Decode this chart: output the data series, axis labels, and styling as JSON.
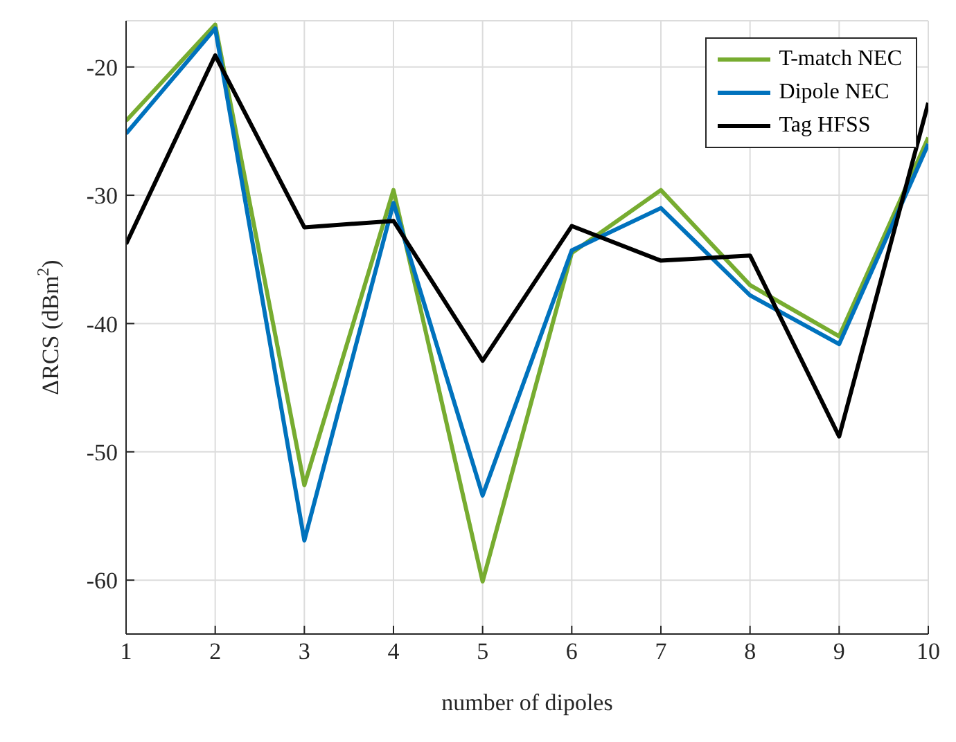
{
  "chart_data": {
    "type": "line",
    "xlabel": "number of dipoles",
    "ylabel": "ΔRCS (dBm$^{2}$)",
    "x": [
      1,
      2,
      3,
      4,
      5,
      6,
      7,
      8,
      9,
      10
    ],
    "series": [
      {
        "name": "T-match NEC",
        "color": "#77ac30",
        "values": [
          -24.2,
          -16.7,
          -52.6,
          -29.6,
          -60.1,
          -34.5,
          -29.6,
          -37,
          -41,
          -25.5
        ]
      },
      {
        "name": "Dipole NEC",
        "color": "#0072bd",
        "values": [
          -25.2,
          -17,
          -56.9,
          -30.6,
          -53.4,
          -34.3,
          -31,
          -37.8,
          -41.6,
          -26
        ]
      },
      {
        "name": "Tag HFSS",
        "color": "#000000",
        "values": [
          -33.8,
          -19.1,
          -32.5,
          -32,
          -42.9,
          -32.4,
          -35.1,
          -34.7,
          -48.8,
          -22.8
        ]
      }
    ],
    "xlim": [
      1,
      10
    ],
    "xticks": [
      1,
      2,
      3,
      4,
      5,
      6,
      7,
      8,
      9,
      10
    ],
    "ylim": [
      -64.2,
      -16.4
    ],
    "yticks": [
      -60,
      -50,
      -40,
      -30,
      -20
    ],
    "grid": true,
    "legend": "top right",
    "marker": "none",
    "line_style": "solid"
  }
}
